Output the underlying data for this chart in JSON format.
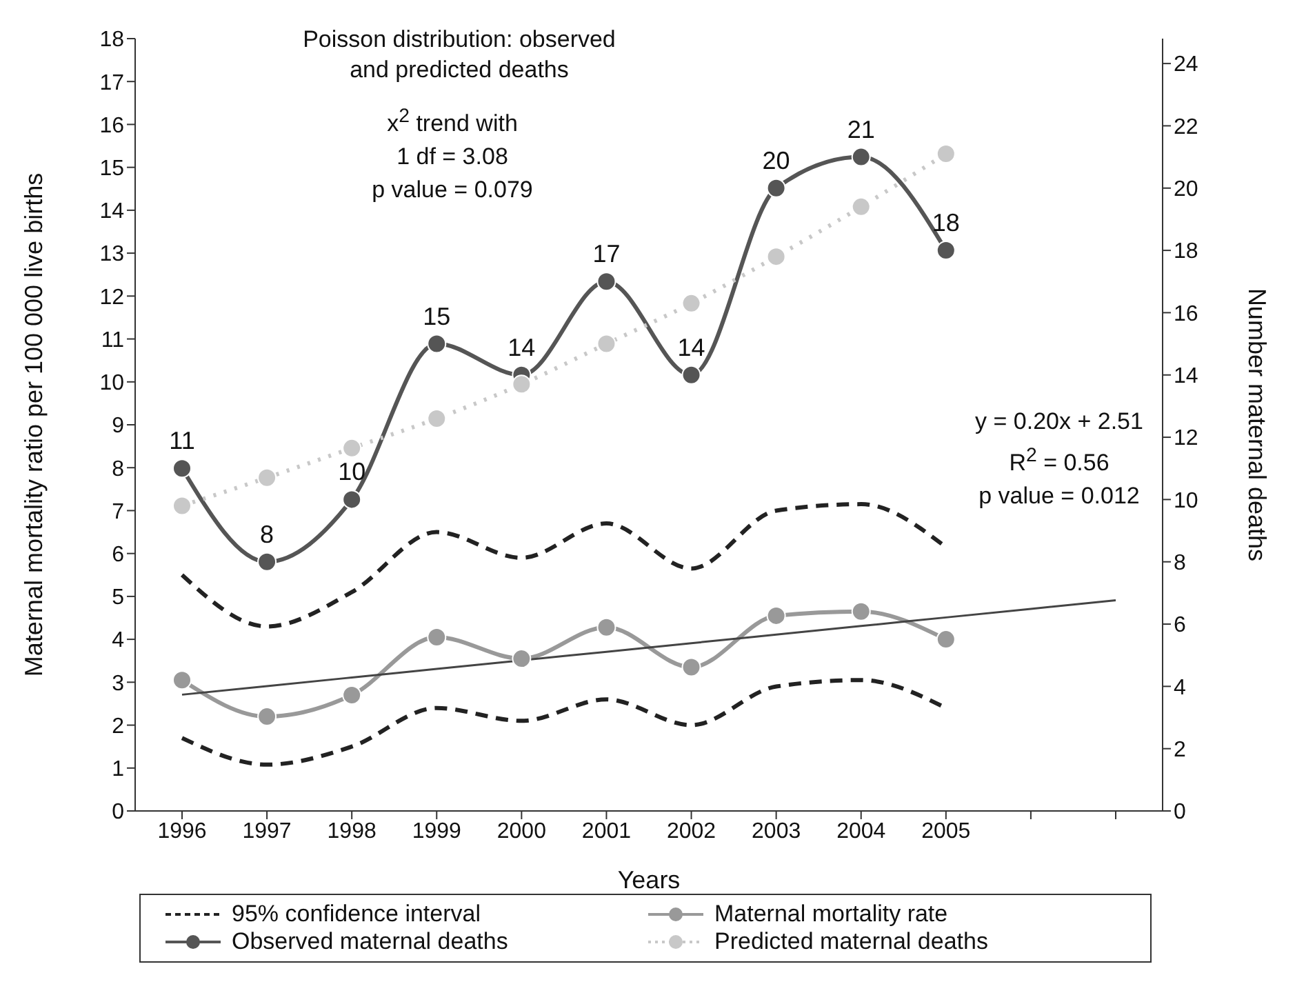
{
  "chart_data": {
    "type": "line",
    "title": "Poisson distribution:\nobserved and predicted deaths",
    "xlabel": "Years",
    "ylabel": "Maternal mortality ratio per 100 000 live births",
    "y2label": "Number maternal deaths",
    "categories": [
      "1996",
      "1997",
      "1998",
      "1999",
      "2000",
      "2001",
      "2002",
      "2003",
      "2004",
      "2005",
      null,
      null
    ],
    "ylim": [
      0,
      18
    ],
    "yticks": [
      0,
      1,
      2,
      3,
      4,
      5,
      6,
      7,
      8,
      9,
      10,
      11,
      12,
      13,
      14,
      15,
      16,
      17,
      18
    ],
    "y2lim": [
      0,
      24.8
    ],
    "y2ticks": [
      0,
      2,
      4,
      6,
      8,
      10,
      12,
      14,
      16,
      18,
      20,
      22,
      24
    ],
    "grid": false,
    "legend": "bottom",
    "annotations": [
      "x$^{2}$ trend with\n1 df = 3.08\np value = 0.079",
      "y = 0.20x + 2.51\nR$^{2}$ = 0.56\np value = 0.012"
    ],
    "series": [
      {
        "name": "95% confidence interval",
        "color": "#222222",
        "line_style": "dashed",
        "marker": "none",
        "values": [
          5.5,
          4.3,
          5.1,
          6.5,
          5.9,
          6.7,
          5.65,
          7.0,
          7.15,
          6.15,
          null,
          null
        ]
      },
      {
        "name": "Maternal mortality rate",
        "color": "#999999",
        "line_style": "solid",
        "marker": "circle",
        "values": [
          3.05,
          2.2,
          2.7,
          4.05,
          3.55,
          4.28,
          3.35,
          4.55,
          4.65,
          4.0,
          null,
          null
        ]
      },
      {
        "name": "Observed maternal deaths",
        "color": "#555555",
        "line_style": "solid",
        "marker": "circle",
        "axis": "y2",
        "values": [
          11,
          8,
          10,
          15,
          14,
          17,
          14,
          20,
          21,
          18,
          null,
          null
        ],
        "value_labels": [
          "11",
          "8",
          "10",
          "15",
          "14",
          "17",
          "14",
          "20",
          "21",
          "18",
          null,
          null
        ]
      },
      {
        "name": "Predicted maternal deaths",
        "color": "#c8c8c8",
        "line_style": "dotted",
        "marker": "circle",
        "axis": "y2",
        "values": [
          9.8,
          10.7,
          11.65,
          12.6,
          13.7,
          15.0,
          16.3,
          17.8,
          19.4,
          21.1,
          null,
          null
        ]
      },
      {
        "color": "#222222",
        "line_style": "dashed",
        "marker": "none",
        "values": [
          1.7,
          1.08,
          1.5,
          2.4,
          2.1,
          2.6,
          2.0,
          2.9,
          3.05,
          2.4,
          null,
          null
        ]
      },
      {
        "color": "#444444",
        "line_style": "solid",
        "marker": "none",
        "values": [
          2.71,
          2.91,
          3.11,
          3.31,
          3.51,
          3.71,
          3.91,
          4.11,
          4.31,
          4.51,
          4.71,
          4.91
        ]
      }
    ]
  }
}
